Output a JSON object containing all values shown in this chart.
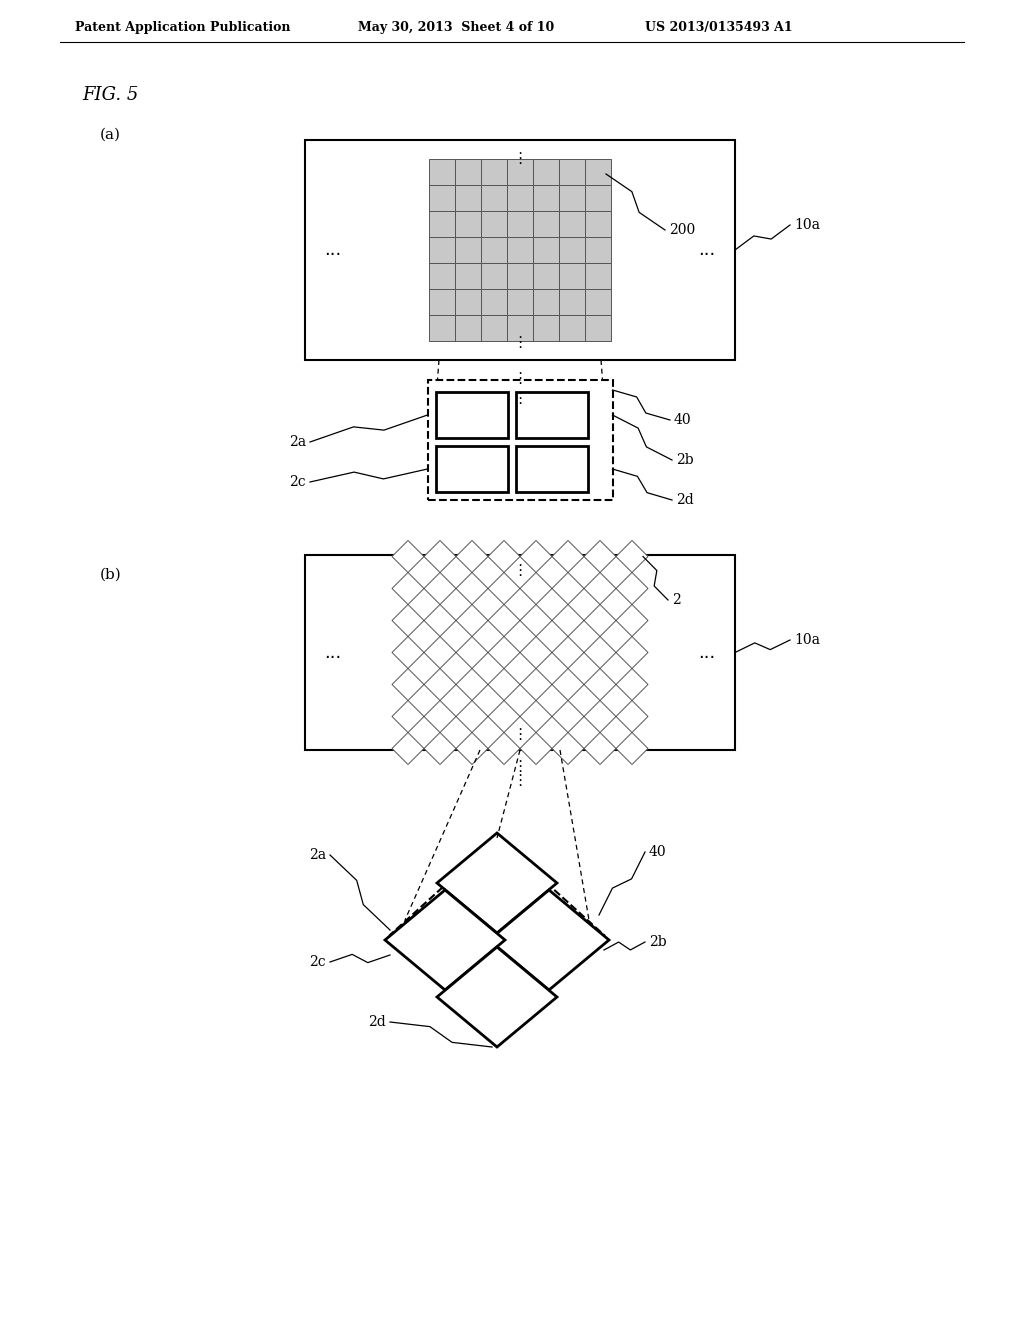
{
  "bg_color": "#ffffff",
  "text_color": "#000000",
  "header_left": "Patent Application Publication",
  "header_mid": "May 30, 2013  Sheet 4 of 10",
  "header_right": "US 2013/0135493 A1",
  "fig_label": "FIG. 5",
  "sub_a": "(a)",
  "sub_b": "(b)",
  "grid_fill": "#c8c8c8",
  "grid_edge": "#555555"
}
